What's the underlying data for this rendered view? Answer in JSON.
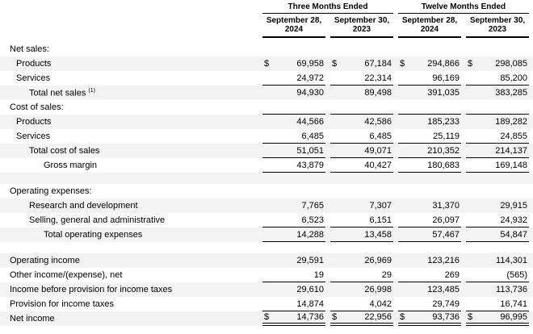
{
  "style": {
    "background": "#ffffff",
    "stripe_color": "#f3f3f3",
    "rule_color": "#000000",
    "text_color": "#000000"
  },
  "table": {
    "currency_symbol": "$",
    "footnote_ref": "(1)",
    "groups": [
      {
        "label": "Three Months Ended"
      },
      {
        "label": "Twelve Months Ended"
      }
    ],
    "columns": [
      {
        "line1": "September 28,",
        "line2": "2024"
      },
      {
        "line1": "September 30,",
        "line2": "2023"
      },
      {
        "line1": "September 28,",
        "line2": "2024"
      },
      {
        "line1": "September 30,",
        "line2": "2023"
      }
    ],
    "rows": [
      {
        "label": "Net sales:",
        "indent": 0,
        "shaded": false
      },
      {
        "label": "Products",
        "indent": 1,
        "shaded": true,
        "dollar": true,
        "values": [
          "69,958",
          "67,184",
          "294,866",
          "298,085"
        ]
      },
      {
        "label": "Services",
        "indent": 1,
        "shaded": false,
        "underline": "single",
        "values": [
          "24,972",
          "22,314",
          "96,169",
          "85,200"
        ]
      },
      {
        "label": "Total net sales",
        "sup": "(1)",
        "indent": 2,
        "shaded": true,
        "values": [
          "94,930",
          "89,498",
          "391,035",
          "383,285"
        ]
      },
      {
        "label": "Cost of sales:",
        "indent": 0,
        "shaded": false,
        "underline": "single"
      },
      {
        "label": "Products",
        "indent": 1,
        "shaded": true,
        "values": [
          "44,566",
          "42,586",
          "185,233",
          "189,282"
        ]
      },
      {
        "label": "Services",
        "indent": 1,
        "shaded": false,
        "underline": "single",
        "values": [
          "6,485",
          "6,485",
          "25,119",
          "24,855"
        ]
      },
      {
        "label": "Total cost of sales",
        "indent": 2,
        "shaded": true,
        "underline": "single",
        "values": [
          "51,051",
          "49,071",
          "210,352",
          "214,137"
        ]
      },
      {
        "label": "Gross margin",
        "indent": 3,
        "shaded": false,
        "underline": "single",
        "values": [
          "43,879",
          "40,427",
          "180,683",
          "169,148"
        ]
      },
      {
        "spacer": true,
        "shaded": true
      },
      {
        "label": "Operating expenses:",
        "indent": 0,
        "shaded": false
      },
      {
        "label": "Research and development",
        "indent": 2,
        "shaded": true,
        "values": [
          "7,765",
          "7,307",
          "31,370",
          "29,915"
        ]
      },
      {
        "label": "Selling, general and administrative",
        "indent": 2,
        "shaded": false,
        "underline": "single",
        "values": [
          "6,523",
          "6,151",
          "26,097",
          "24,932"
        ]
      },
      {
        "label": "Total operating expenses",
        "indent": 3,
        "shaded": true,
        "underline": "single",
        "values": [
          "14,288",
          "13,458",
          "57,467",
          "54,847"
        ]
      },
      {
        "spacer": true,
        "shaded": false
      },
      {
        "label": "Operating income",
        "indent": 0,
        "shaded": true,
        "values": [
          "29,591",
          "26,969",
          "123,216",
          "114,301"
        ]
      },
      {
        "label": "Other income/(expense), net",
        "indent": 0,
        "shaded": false,
        "underline": "single",
        "values": [
          "19",
          "29",
          "269",
          "(565)"
        ]
      },
      {
        "label": "Income before provision for income taxes",
        "indent": 0,
        "shaded": true,
        "values": [
          "29,610",
          "26,998",
          "123,485",
          "113,736"
        ]
      },
      {
        "label": "Provision for income taxes",
        "indent": 0,
        "shaded": false,
        "underline": "single",
        "values": [
          "14,874",
          "4,042",
          "29,749",
          "16,741"
        ]
      },
      {
        "label": "Net income",
        "indent": 0,
        "shaded": true,
        "dollar": true,
        "underline": "double",
        "values": [
          "14,736",
          "22,956",
          "93,736",
          "96,995"
        ]
      }
    ]
  }
}
